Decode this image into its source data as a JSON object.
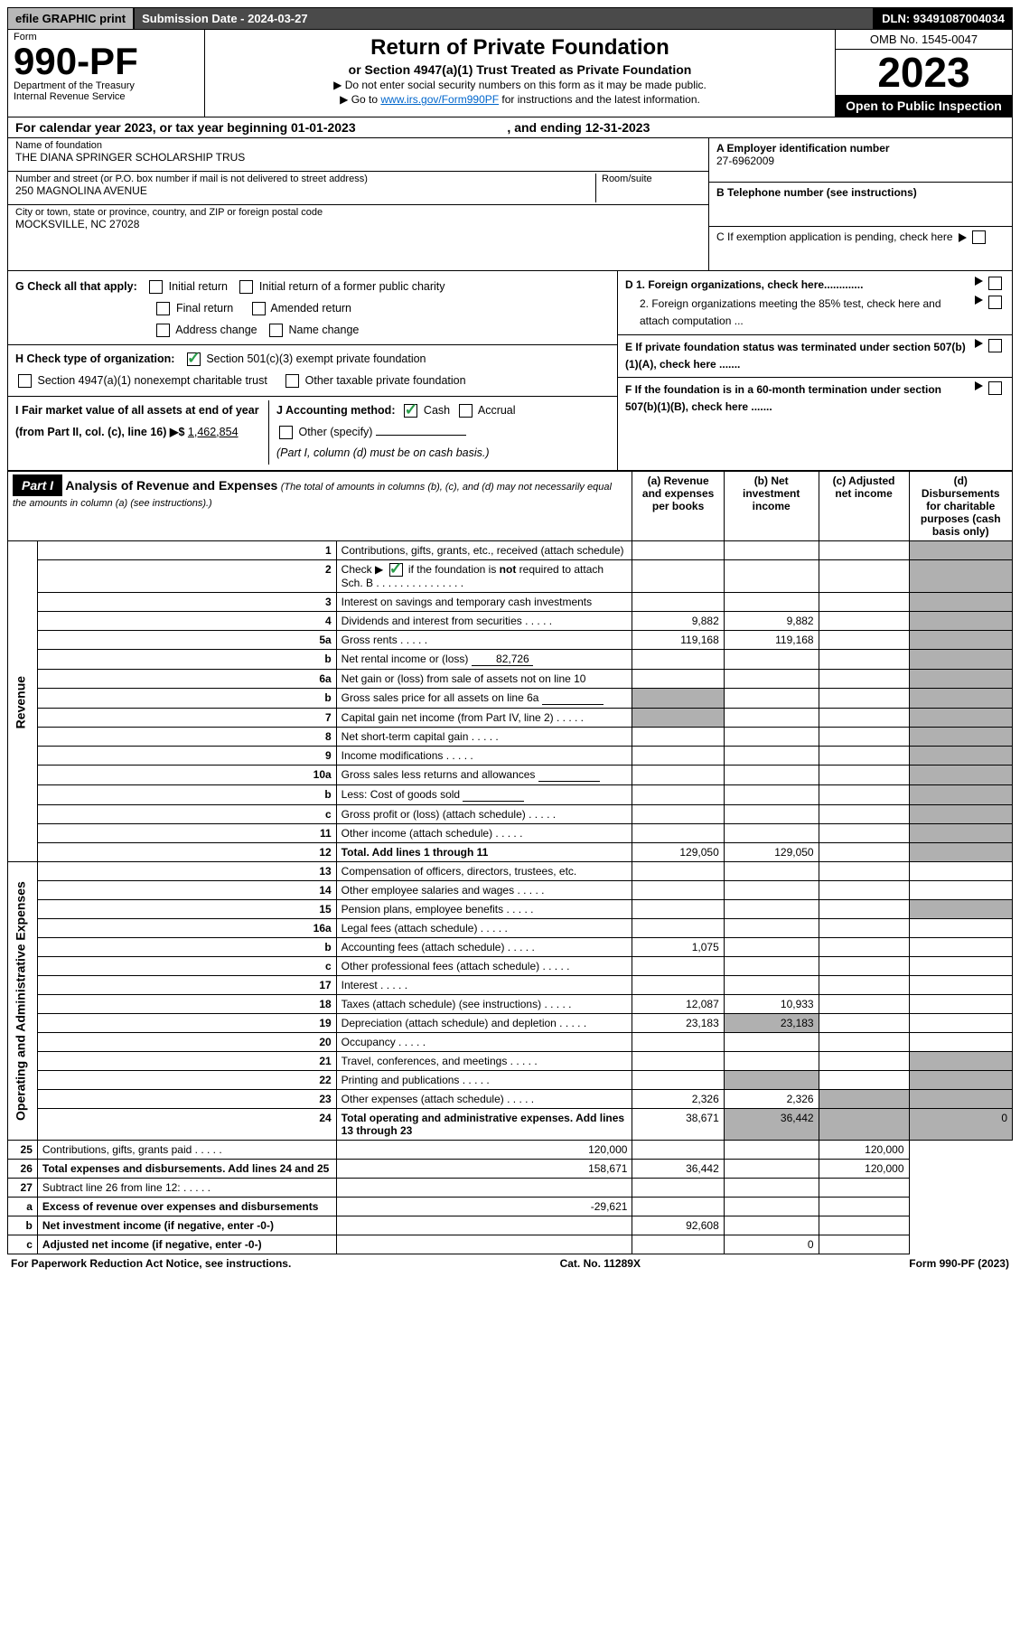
{
  "topbar": {
    "efile": "efile GRAPHIC print",
    "submission": "Submission Date - 2024-03-27",
    "dln": "DLN: 93491087004034"
  },
  "header": {
    "form_label": "Form",
    "form_no": "990-PF",
    "dept": "Department of the Treasury",
    "irs": "Internal Revenue Service",
    "title": "Return of Private Foundation",
    "subtitle": "or Section 4947(a)(1) Trust Treated as Private Foundation",
    "note1": "▶ Do not enter social security numbers on this form as it may be made public.",
    "note2_pre": "▶ Go to ",
    "note2_link": "www.irs.gov/Form990PF",
    "note2_post": " for instructions and the latest information.",
    "omb": "OMB No. 1545-0047",
    "year": "2023",
    "otp": "Open to Public Inspection"
  },
  "calendar": {
    "pre": "For calendar year 2023, or tax year beginning ",
    "begin": "01-01-2023",
    "mid": " , and ending ",
    "end": "12-31-2023"
  },
  "id": {
    "name_label": "Name of foundation",
    "name": "THE DIANA SPRINGER SCHOLARSHIP TRUS",
    "addr_label": "Number and street (or P.O. box number if mail is not delivered to street address)",
    "room_label": "Room/suite",
    "addr": "250 MAGNOLINA AVENUE",
    "city_label": "City or town, state or province, country, and ZIP or foreign postal code",
    "city": "MOCKSVILLE, NC  27028",
    "ein_label": "A Employer identification number",
    "ein": "27-6962009",
    "tel_label": "B Telephone number (see instructions)",
    "c": "C  If exemption application is pending, check here",
    "d1": "D 1. Foreign organizations, check here.............",
    "d2": "2. Foreign organizations meeting the 85% test, check here and attach computation ...",
    "e": "E  If private foundation status was terminated under section 507(b)(1)(A), check here .......",
    "f": "F  If the foundation is in a 60-month termination under section 507(b)(1)(B), check here ......."
  },
  "checks": {
    "G": "G Check all that apply:",
    "G_opts": [
      "Initial return",
      "Initial return of a former public charity",
      "Final return",
      "Amended return",
      "Address change",
      "Name change"
    ],
    "H": "H Check type of organization:",
    "H1": "Section 501(c)(3) exempt private foundation",
    "H2": "Section 4947(a)(1) nonexempt charitable trust",
    "H3": "Other taxable private foundation",
    "I_pre": "I Fair market value of all assets at end of year (from Part II, col. (c), line 16) ▶$ ",
    "I_val": "1,462,854",
    "J": "J Accounting method:",
    "J_opts": [
      "Cash",
      "Accrual"
    ],
    "J_other": "Other (specify)",
    "J_note": "(Part I, column (d) must be on cash basis.)"
  },
  "part1": {
    "label": "Part I",
    "title": "Analysis of Revenue and Expenses",
    "title_note": "(The total of amounts in columns (b), (c), and (d) may not necessarily equal the amounts in column (a) (see instructions).)",
    "cols": {
      "a": "(a)   Revenue and expenses per books",
      "b": "(b)   Net investment income",
      "c": "(c)   Adjusted net income",
      "d": "(d)   Disbursements for charitable purposes (cash basis only)"
    },
    "side_rev": "Revenue",
    "side_exp": "Operating and Administrative Expenses"
  },
  "rows": [
    {
      "n": "1",
      "d": "Contributions, gifts, grants, etc., received (attach schedule)"
    },
    {
      "n": "2",
      "d": "Check ▶ [✓] if the foundation is not required to attach Sch. B"
    },
    {
      "n": "3",
      "d": "Interest on savings and temporary cash investments"
    },
    {
      "n": "4",
      "d": "Dividends and interest from securities",
      "a": "9,882",
      "b": "9,882"
    },
    {
      "n": "5a",
      "d": "Gross rents",
      "a": "119,168",
      "b": "119,168"
    },
    {
      "n": "b",
      "d": "Net rental income or (loss)",
      "inline": "82,726"
    },
    {
      "n": "6a",
      "d": "Net gain or (loss) from sale of assets not on line 10"
    },
    {
      "n": "b",
      "d": "Gross sales price for all assets on line 6a",
      "inline_blank": true
    },
    {
      "n": "7",
      "d": "Capital gain net income (from Part IV, line 2)"
    },
    {
      "n": "8",
      "d": "Net short-term capital gain"
    },
    {
      "n": "9",
      "d": "Income modifications"
    },
    {
      "n": "10a",
      "d": "Gross sales less returns and allowances",
      "inline_blank": true
    },
    {
      "n": "b",
      "d": "Less: Cost of goods sold",
      "inline_blank": true
    },
    {
      "n": "c",
      "d": "Gross profit or (loss) (attach schedule)"
    },
    {
      "n": "11",
      "d": "Other income (attach schedule)"
    },
    {
      "n": "12",
      "d": "Total. Add lines 1 through 11",
      "bold": true,
      "a": "129,050",
      "b": "129,050"
    },
    {
      "n": "13",
      "d": "Compensation of officers, directors, trustees, etc."
    },
    {
      "n": "14",
      "d": "Other employee salaries and wages"
    },
    {
      "n": "15",
      "d": "Pension plans, employee benefits"
    },
    {
      "n": "16a",
      "d": "Legal fees (attach schedule)"
    },
    {
      "n": "b",
      "d": "Accounting fees (attach schedule)",
      "a": "1,075"
    },
    {
      "n": "c",
      "d": "Other professional fees (attach schedule)"
    },
    {
      "n": "17",
      "d": "Interest"
    },
    {
      "n": "18",
      "d": "Taxes (attach schedule) (see instructions)",
      "a": "12,087",
      "b": "10,933"
    },
    {
      "n": "19",
      "d": "Depreciation (attach schedule) and depletion",
      "a": "23,183",
      "b": "23,183"
    },
    {
      "n": "20",
      "d": "Occupancy"
    },
    {
      "n": "21",
      "d": "Travel, conferences, and meetings"
    },
    {
      "n": "22",
      "d": "Printing and publications"
    },
    {
      "n": "23",
      "d": "Other expenses (attach schedule)",
      "a": "2,326",
      "b": "2,326"
    },
    {
      "n": "24",
      "d": "Total operating and administrative expenses. Add lines 13 through 23",
      "bold": true,
      "a": "38,671",
      "b": "36,442",
      "dd": "0"
    },
    {
      "n": "25",
      "d": "Contributions, gifts, grants paid",
      "a": "120,000",
      "dd": "120,000"
    },
    {
      "n": "26",
      "d": "Total expenses and disbursements. Add lines 24 and 25",
      "bold": true,
      "a": "158,671",
      "b": "36,442",
      "dd": "120,000"
    },
    {
      "n": "27",
      "d": "Subtract line 26 from line 12:"
    },
    {
      "n": "a",
      "d": "Excess of revenue over expenses and disbursements",
      "bold": true,
      "a": "-29,621"
    },
    {
      "n": "b",
      "d": "Net investment income (if negative, enter -0-)",
      "bold": true,
      "b": "92,608"
    },
    {
      "n": "c",
      "d": "Adjusted net income (if negative, enter -0-)",
      "bold": true,
      "c": "0"
    }
  ],
  "grey_cells": {
    "d_grey": [
      0,
      1,
      2,
      3,
      4,
      5,
      6,
      7,
      8,
      9,
      10,
      11,
      12,
      13,
      14,
      15,
      18,
      26,
      27,
      28,
      29
    ],
    "c_grey": [
      28,
      29
    ],
    "a_grey": [
      7,
      8
    ],
    "b_grey": [
      24,
      27,
      29
    ]
  },
  "row2_check_on": true,
  "footer": {
    "left": "For Paperwork Reduction Act Notice, see instructions.",
    "mid": "Cat. No. 11289X",
    "right": "Form 990-PF (2023)"
  }
}
